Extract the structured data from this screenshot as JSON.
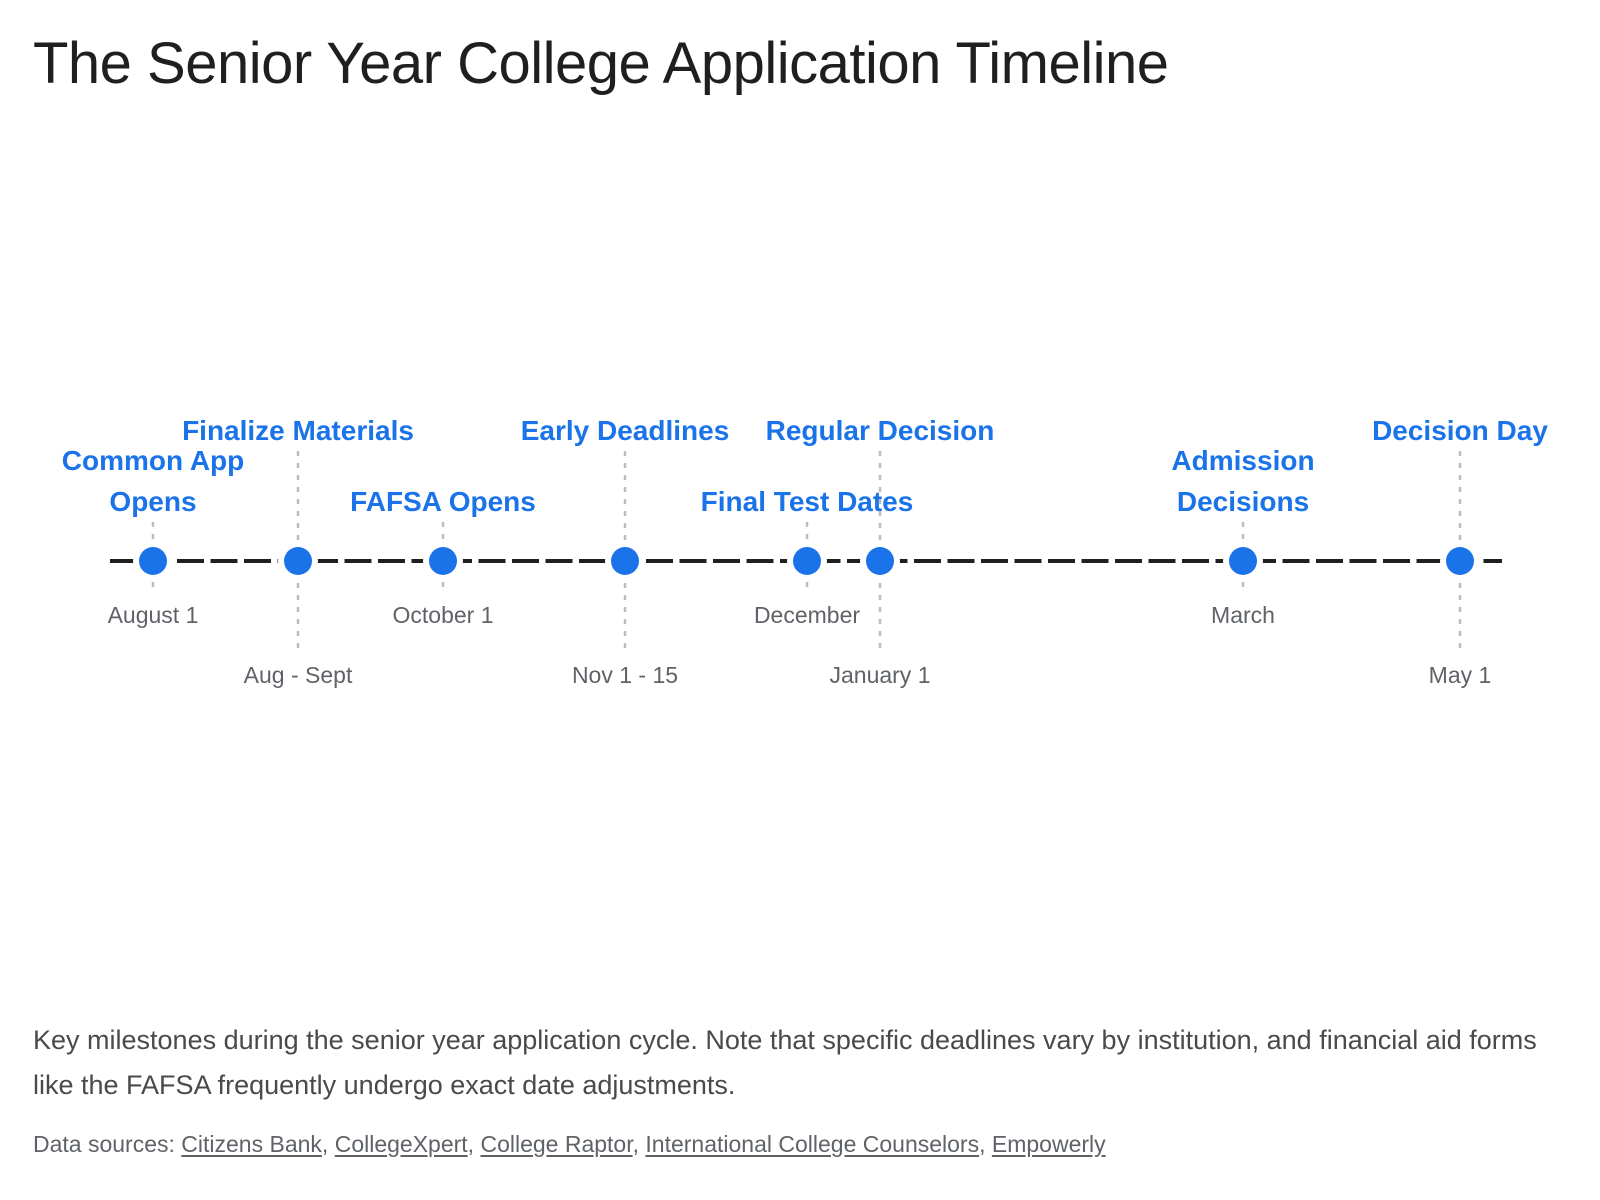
{
  "title": "The Senior Year College Application Timeline",
  "colors": {
    "accent": "#1a73e8",
    "line": "#1f1f1f",
    "tick": "#bdbdbd",
    "date_text": "#5f6368"
  },
  "timeline": {
    "events": [
      {
        "name": "Common App Opens",
        "label_lines": [
          "Common App",
          "Opens"
        ],
        "date": "August 1"
      },
      {
        "name": "Finalize Materials",
        "label_lines": [
          "Finalize Materials"
        ],
        "date": "Aug - Sept"
      },
      {
        "name": "FAFSA Opens",
        "label_lines": [
          "FAFSA Opens"
        ],
        "date": "October 1"
      },
      {
        "name": "Early Deadlines",
        "label_lines": [
          "Early Deadlines"
        ],
        "date": "Nov 1 - 15"
      },
      {
        "name": "Final Test Dates",
        "label_lines": [
          "Final Test Dates"
        ],
        "date": "December"
      },
      {
        "name": "Regular Decision",
        "label_lines": [
          "Regular Decision"
        ],
        "date": "January 1"
      },
      {
        "name": "Admission Decisions",
        "label_lines": [
          "Admission",
          "Decisions"
        ],
        "date": "March"
      },
      {
        "name": "Decision Day",
        "label_lines": [
          "Decision Day"
        ],
        "date": "May 1"
      }
    ]
  },
  "caption": "Key milestones during the senior year application cycle. Note that specific deadlines vary by institution, and financial aid forms like the FAFSA frequently undergo exact date adjustments.",
  "sources": {
    "prefix": "Data sources: ",
    "items": [
      "Citizens Bank",
      "CollegeXpert",
      "College Raptor",
      "International College Counselors",
      "Empowerly"
    ]
  }
}
